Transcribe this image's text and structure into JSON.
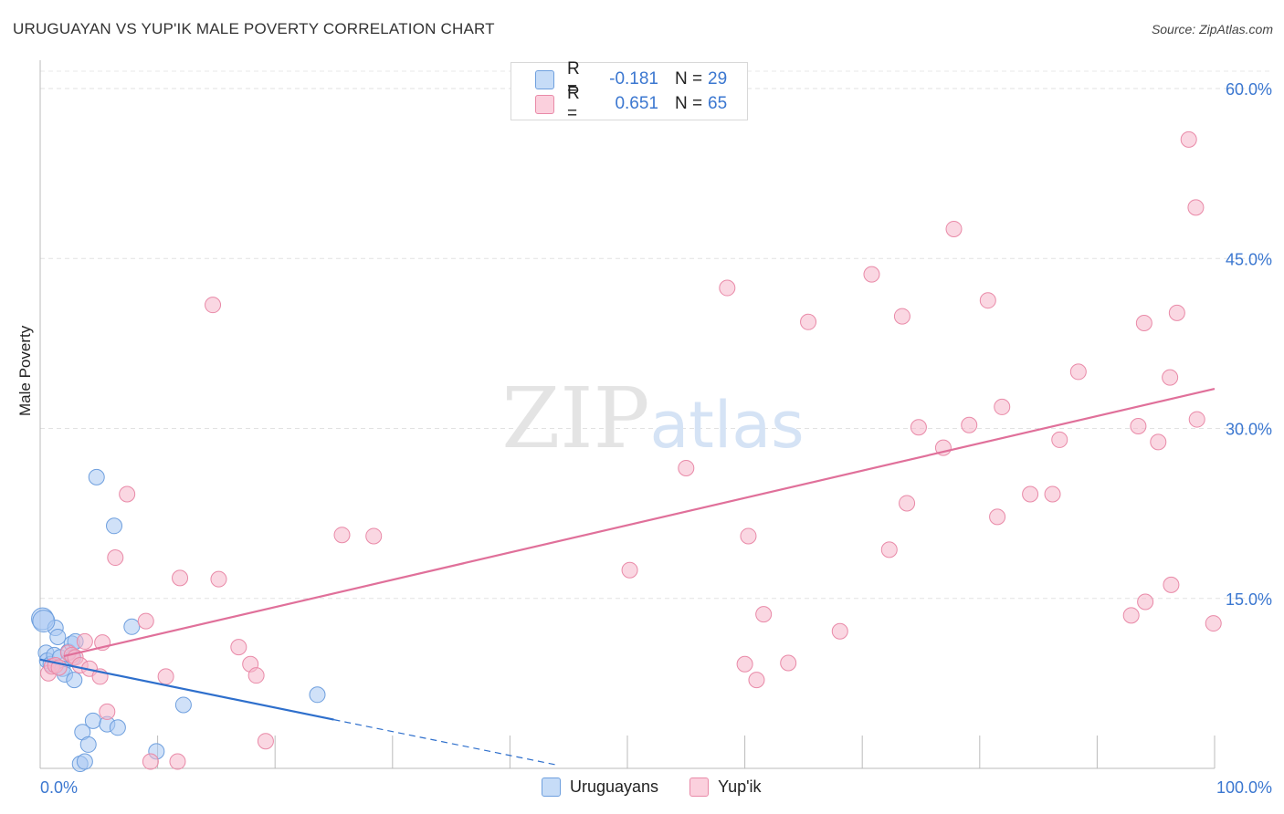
{
  "title": "URUGUAYAN VS YUP'IK MALE POVERTY CORRELATION CHART",
  "source": "Source: ZipAtlas.com",
  "watermark": {
    "part1": "ZIP",
    "part2": "atlas"
  },
  "legend_top": [
    {
      "r_label": "R =",
      "r_value": "-0.181",
      "n_label": "N =",
      "n_value": "29",
      "color": "#a9c8f2"
    },
    {
      "r_label": "R =",
      "r_value": "0.651",
      "n_label": "N =",
      "n_value": "65",
      "color": "#f6b6cb"
    }
  ],
  "legend_bottom": [
    {
      "label": "Uruguayans",
      "color": "#a9c8f2"
    },
    {
      "label": "Yup'ik",
      "color": "#f6b6cb"
    }
  ],
  "chart_data": {
    "type": "scatter",
    "ylabel": "Male Poverty",
    "xlabel": "",
    "xlim": [
      0,
      100
    ],
    "ylim": [
      0,
      60
    ],
    "x_tick_labels": [
      "0.0%",
      "100.0%"
    ],
    "y_ticks": [
      15,
      30,
      45,
      60
    ],
    "y_tick_labels": [
      "15.0%",
      "30.0%",
      "45.0%",
      "60.0%"
    ],
    "grid": true,
    "series": [
      {
        "name": "Uruguayans",
        "color": "#a9c8f2",
        "stroke": "#6e9fde",
        "line_color": "#2e6fcc",
        "points": [
          [
            0.2,
            13.2
          ],
          [
            0.5,
            10.2
          ],
          [
            0.6,
            9.5
          ],
          [
            0.9,
            9.2
          ],
          [
            1.2,
            10.0
          ],
          [
            1.3,
            12.4
          ],
          [
            1.5,
            11.6
          ],
          [
            1.7,
            9.8
          ],
          [
            1.9,
            8.8
          ],
          [
            2.1,
            8.3
          ],
          [
            2.4,
            10.3
          ],
          [
            2.7,
            11.0
          ],
          [
            2.8,
            9.8
          ],
          [
            2.9,
            7.8
          ],
          [
            3.0,
            11.2
          ],
          [
            3.4,
            0.4
          ],
          [
            3.6,
            3.2
          ],
          [
            3.8,
            0.6
          ],
          [
            4.1,
            2.1
          ],
          [
            4.5,
            4.2
          ],
          [
            4.8,
            25.7
          ],
          [
            5.7,
            3.9
          ],
          [
            6.3,
            21.4
          ],
          [
            6.6,
            3.6
          ],
          [
            7.8,
            12.5
          ],
          [
            9.9,
            1.5
          ],
          [
            12.2,
            5.6
          ],
          [
            23.6,
            6.5
          ],
          [
            0.3,
            13.0
          ]
        ],
        "trend": {
          "x0": 0,
          "y0": 9.6,
          "x1": 25,
          "y1": 4.3,
          "dash_to_x": 44,
          "dash_to_y": 0.3
        }
      },
      {
        "name": "Yup'ik",
        "color": "#f6b6cb",
        "stroke": "#e98aa8",
        "line_color": "#e0709a",
        "points": [
          [
            0.7,
            8.4
          ],
          [
            1.0,
            9.0
          ],
          [
            1.3,
            9.1
          ],
          [
            1.6,
            8.9
          ],
          [
            2.4,
            10.2
          ],
          [
            2.7,
            10.0
          ],
          [
            3.0,
            9.8
          ],
          [
            3.4,
            9.1
          ],
          [
            3.8,
            11.2
          ],
          [
            4.2,
            8.8
          ],
          [
            5.1,
            8.1
          ],
          [
            5.3,
            11.1
          ],
          [
            5.7,
            5.0
          ],
          [
            6.4,
            18.6
          ],
          [
            7.4,
            24.2
          ],
          [
            9.0,
            13.0
          ],
          [
            9.4,
            0.6
          ],
          [
            10.7,
            8.1
          ],
          [
            11.7,
            0.6
          ],
          [
            11.9,
            16.8
          ],
          [
            14.7,
            40.9
          ],
          [
            15.2,
            16.7
          ],
          [
            16.9,
            10.7
          ],
          [
            17.9,
            9.2
          ],
          [
            18.4,
            8.2
          ],
          [
            19.2,
            2.4
          ],
          [
            25.7,
            20.6
          ],
          [
            28.4,
            20.5
          ],
          [
            50.2,
            17.5
          ],
          [
            55.0,
            26.5
          ],
          [
            58.5,
            42.4
          ],
          [
            60.0,
            9.2
          ],
          [
            60.3,
            20.5
          ],
          [
            61.0,
            7.8
          ],
          [
            61.6,
            13.6
          ],
          [
            63.7,
            9.3
          ],
          [
            65.4,
            39.4
          ],
          [
            68.1,
            12.1
          ],
          [
            70.8,
            43.6
          ],
          [
            72.3,
            19.3
          ],
          [
            73.4,
            39.9
          ],
          [
            73.8,
            23.4
          ],
          [
            74.8,
            30.1
          ],
          [
            76.9,
            28.3
          ],
          [
            77.8,
            47.6
          ],
          [
            79.1,
            30.3
          ],
          [
            80.7,
            41.3
          ],
          [
            81.5,
            22.2
          ],
          [
            81.9,
            31.9
          ],
          [
            84.3,
            24.2
          ],
          [
            86.2,
            24.2
          ],
          [
            86.8,
            29.0
          ],
          [
            88.4,
            35.0
          ],
          [
            92.9,
            13.5
          ],
          [
            93.5,
            30.2
          ],
          [
            94.0,
            39.3
          ],
          [
            94.1,
            14.7
          ],
          [
            95.2,
            28.8
          ],
          [
            96.2,
            34.5
          ],
          [
            96.3,
            16.2
          ],
          [
            96.8,
            40.2
          ],
          [
            97.8,
            55.5
          ],
          [
            98.4,
            49.5
          ],
          [
            98.5,
            30.8
          ],
          [
            99.9,
            12.8
          ]
        ],
        "trend": {
          "x0": 2,
          "y0": 9.9,
          "x1": 100,
          "y1": 33.5
        }
      }
    ]
  }
}
